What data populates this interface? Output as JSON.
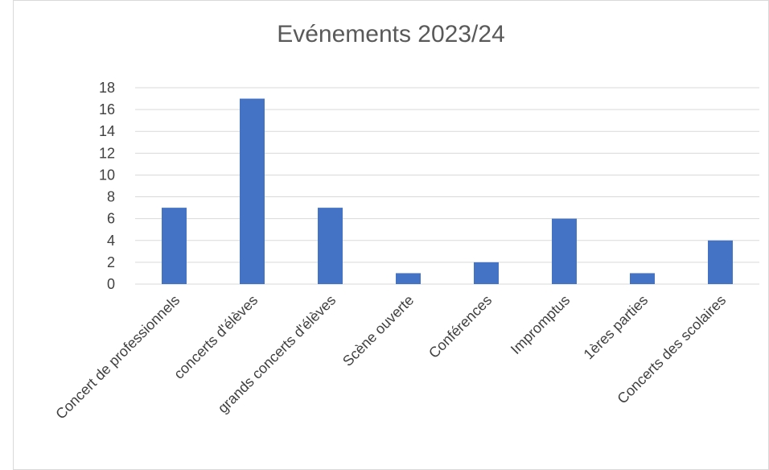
{
  "chart_data": {
    "type": "bar",
    "title": "Evénements 2023/24",
    "categories": [
      "Concert de professionnels",
      "concerts d'élèves",
      "grands concerts d'élèves",
      "Scène ouverte",
      "Conférences",
      "Impromptus",
      "1ères parties",
      "Concerts des scolaires"
    ],
    "values": [
      7,
      17,
      7,
      1,
      2,
      6,
      1,
      4
    ],
    "ylim": [
      0,
      18
    ],
    "yticks": [
      0,
      2,
      4,
      6,
      8,
      10,
      12,
      14,
      16,
      18
    ],
    "grid": true,
    "bar_color": "#4472C4",
    "grid_color": "#d9d9d9"
  }
}
